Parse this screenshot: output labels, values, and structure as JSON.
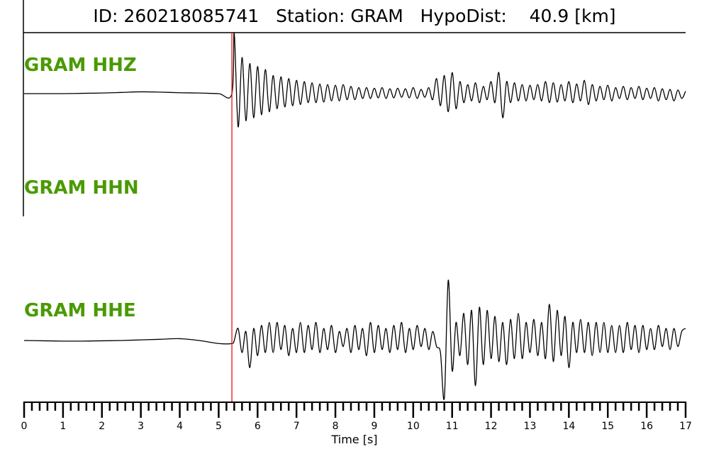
{
  "chart_data": {
    "type": "line",
    "title": "ID: 260218085741   Station: GRAM   HypoDist:    40.9 [km]",
    "xlabel": "Time [s]",
    "ylabel": "",
    "xlim": [
      0,
      17
    ],
    "xticks": [
      "0",
      "1",
      "2",
      "3",
      "4",
      "5",
      "6",
      "7",
      "8",
      "9",
      "10",
      "11",
      "12",
      "13",
      "14",
      "15",
      "16",
      "17"
    ],
    "minor_tick_step": 0.2,
    "grid": false,
    "pick_time": 5.34,
    "pick_color": "#e8141c",
    "label_color": "#4a9a00",
    "series": [
      {
        "name": "GRAM HHZ",
        "pre": {
          "t0": 0,
          "dt": 0.5,
          "values": [
            0,
            0,
            0,
            0.005,
            0.01,
            0.02,
            0.03,
            0.025,
            0.015,
            0.01,
            0.0
          ]
        },
        "post": {
          "t0": 5.4,
          "dt": 0.1,
          "values": [
            1.0,
            -0.55,
            0.6,
            -0.45,
            0.5,
            -0.4,
            0.45,
            -0.35,
            0.4,
            -0.3,
            0.3,
            -0.25,
            0.28,
            -0.22,
            0.25,
            -0.2,
            0.22,
            -0.18,
            0.2,
            -0.15,
            0.18,
            -0.15,
            0.16,
            -0.14,
            0.15,
            -0.12,
            0.14,
            -0.12,
            0.15,
            -0.1,
            0.12,
            -0.1,
            0.1,
            -0.08,
            0.1,
            -0.08,
            0.09,
            -0.07,
            0.1,
            -0.08,
            0.08,
            -0.07,
            0.09,
            -0.06,
            0.08,
            -0.07,
            0.1,
            -0.08,
            0.07,
            -0.06,
            0.1,
            -0.1,
            0.25,
            -0.2,
            0.3,
            -0.3,
            0.35,
            -0.25,
            0.2,
            -0.15,
            0.15,
            -0.12,
            0.18,
            -0.15,
            0.12,
            -0.1,
            0.2,
            -0.15,
            0.35,
            -0.4,
            0.2,
            -0.15,
            0.18,
            -0.12,
            0.15,
            -0.12,
            0.14,
            -0.1,
            0.15,
            -0.12,
            0.2,
            -0.15,
            0.18,
            -0.14,
            0.15,
            -0.12,
            0.2,
            -0.15,
            0.16,
            -0.12,
            0.22,
            -0.18,
            0.15,
            -0.12,
            0.12,
            -0.1,
            0.14,
            -0.12,
            0.1,
            -0.08,
            0.12,
            -0.1,
            0.1,
            -0.08,
            0.12,
            -0.1,
            0.09,
            -0.08,
            0.1,
            -0.12,
            0.08,
            -0.1,
            0.07,
            -0.12,
            0.06,
            -0.08,
            0.04
          ]
        }
      },
      {
        "name": "GRAM HHN",
        "pre": {
          "t0": 0,
          "dt": 0.5,
          "values": []
        },
        "post": {
          "t0": 5.4,
          "dt": 0.1,
          "values": []
        }
      },
      {
        "name": "GRAM HHE",
        "pre": {
          "t0": 0,
          "dt": 0.5,
          "values": [
            0.0,
            -0.005,
            -0.01,
            -0.01,
            -0.005,
            0,
            0.01,
            0.02,
            0.03,
            0.0,
            -0.05
          ]
        },
        "post": {
          "t0": 5.4,
          "dt": 0.1,
          "values": [
            0.0,
            0.2,
            -0.2,
            0.15,
            -0.45,
            0.2,
            -0.25,
            0.25,
            -0.2,
            0.3,
            -0.2,
            0.3,
            -0.15,
            0.25,
            -0.25,
            0.2,
            -0.2,
            0.3,
            -0.2,
            0.25,
            -0.15,
            0.3,
            -0.2,
            0.2,
            -0.15,
            0.25,
            -0.2,
            0.15,
            -0.1,
            0.2,
            -0.2,
            0.25,
            -0.15,
            0.2,
            -0.25,
            0.3,
            -0.2,
            0.25,
            -0.15,
            0.2,
            -0.2,
            0.25,
            -0.15,
            0.3,
            -0.2,
            0.2,
            -0.15,
            0.25,
            -0.1,
            0.2,
            -0.15,
            0.15,
            -0.1,
            -0.2,
            -0.95,
            1.0,
            -0.5,
            0.3,
            -0.25,
            0.45,
            -0.4,
            0.5,
            -0.75,
            0.55,
            -0.4,
            0.5,
            -0.3,
            0.4,
            -0.35,
            0.3,
            -0.4,
            0.35,
            -0.3,
            0.45,
            -0.3,
            0.3,
            -0.2,
            0.35,
            -0.25,
            0.3,
            -0.3,
            0.6,
            -0.35,
            0.5,
            -0.25,
            0.4,
            -0.45,
            0.3,
            -0.2,
            0.35,
            -0.2,
            0.3,
            -0.25,
            0.3,
            -0.2,
            0.3,
            -0.2,
            0.25,
            -0.2,
            0.25,
            -0.2,
            0.3,
            -0.15,
            0.25,
            -0.2,
            0.25,
            -0.15,
            0.2,
            -0.15,
            0.25,
            -0.1,
            0.2,
            -0.15,
            0.2,
            -0.1,
            0.15,
            0.2
          ]
        }
      }
    ]
  }
}
